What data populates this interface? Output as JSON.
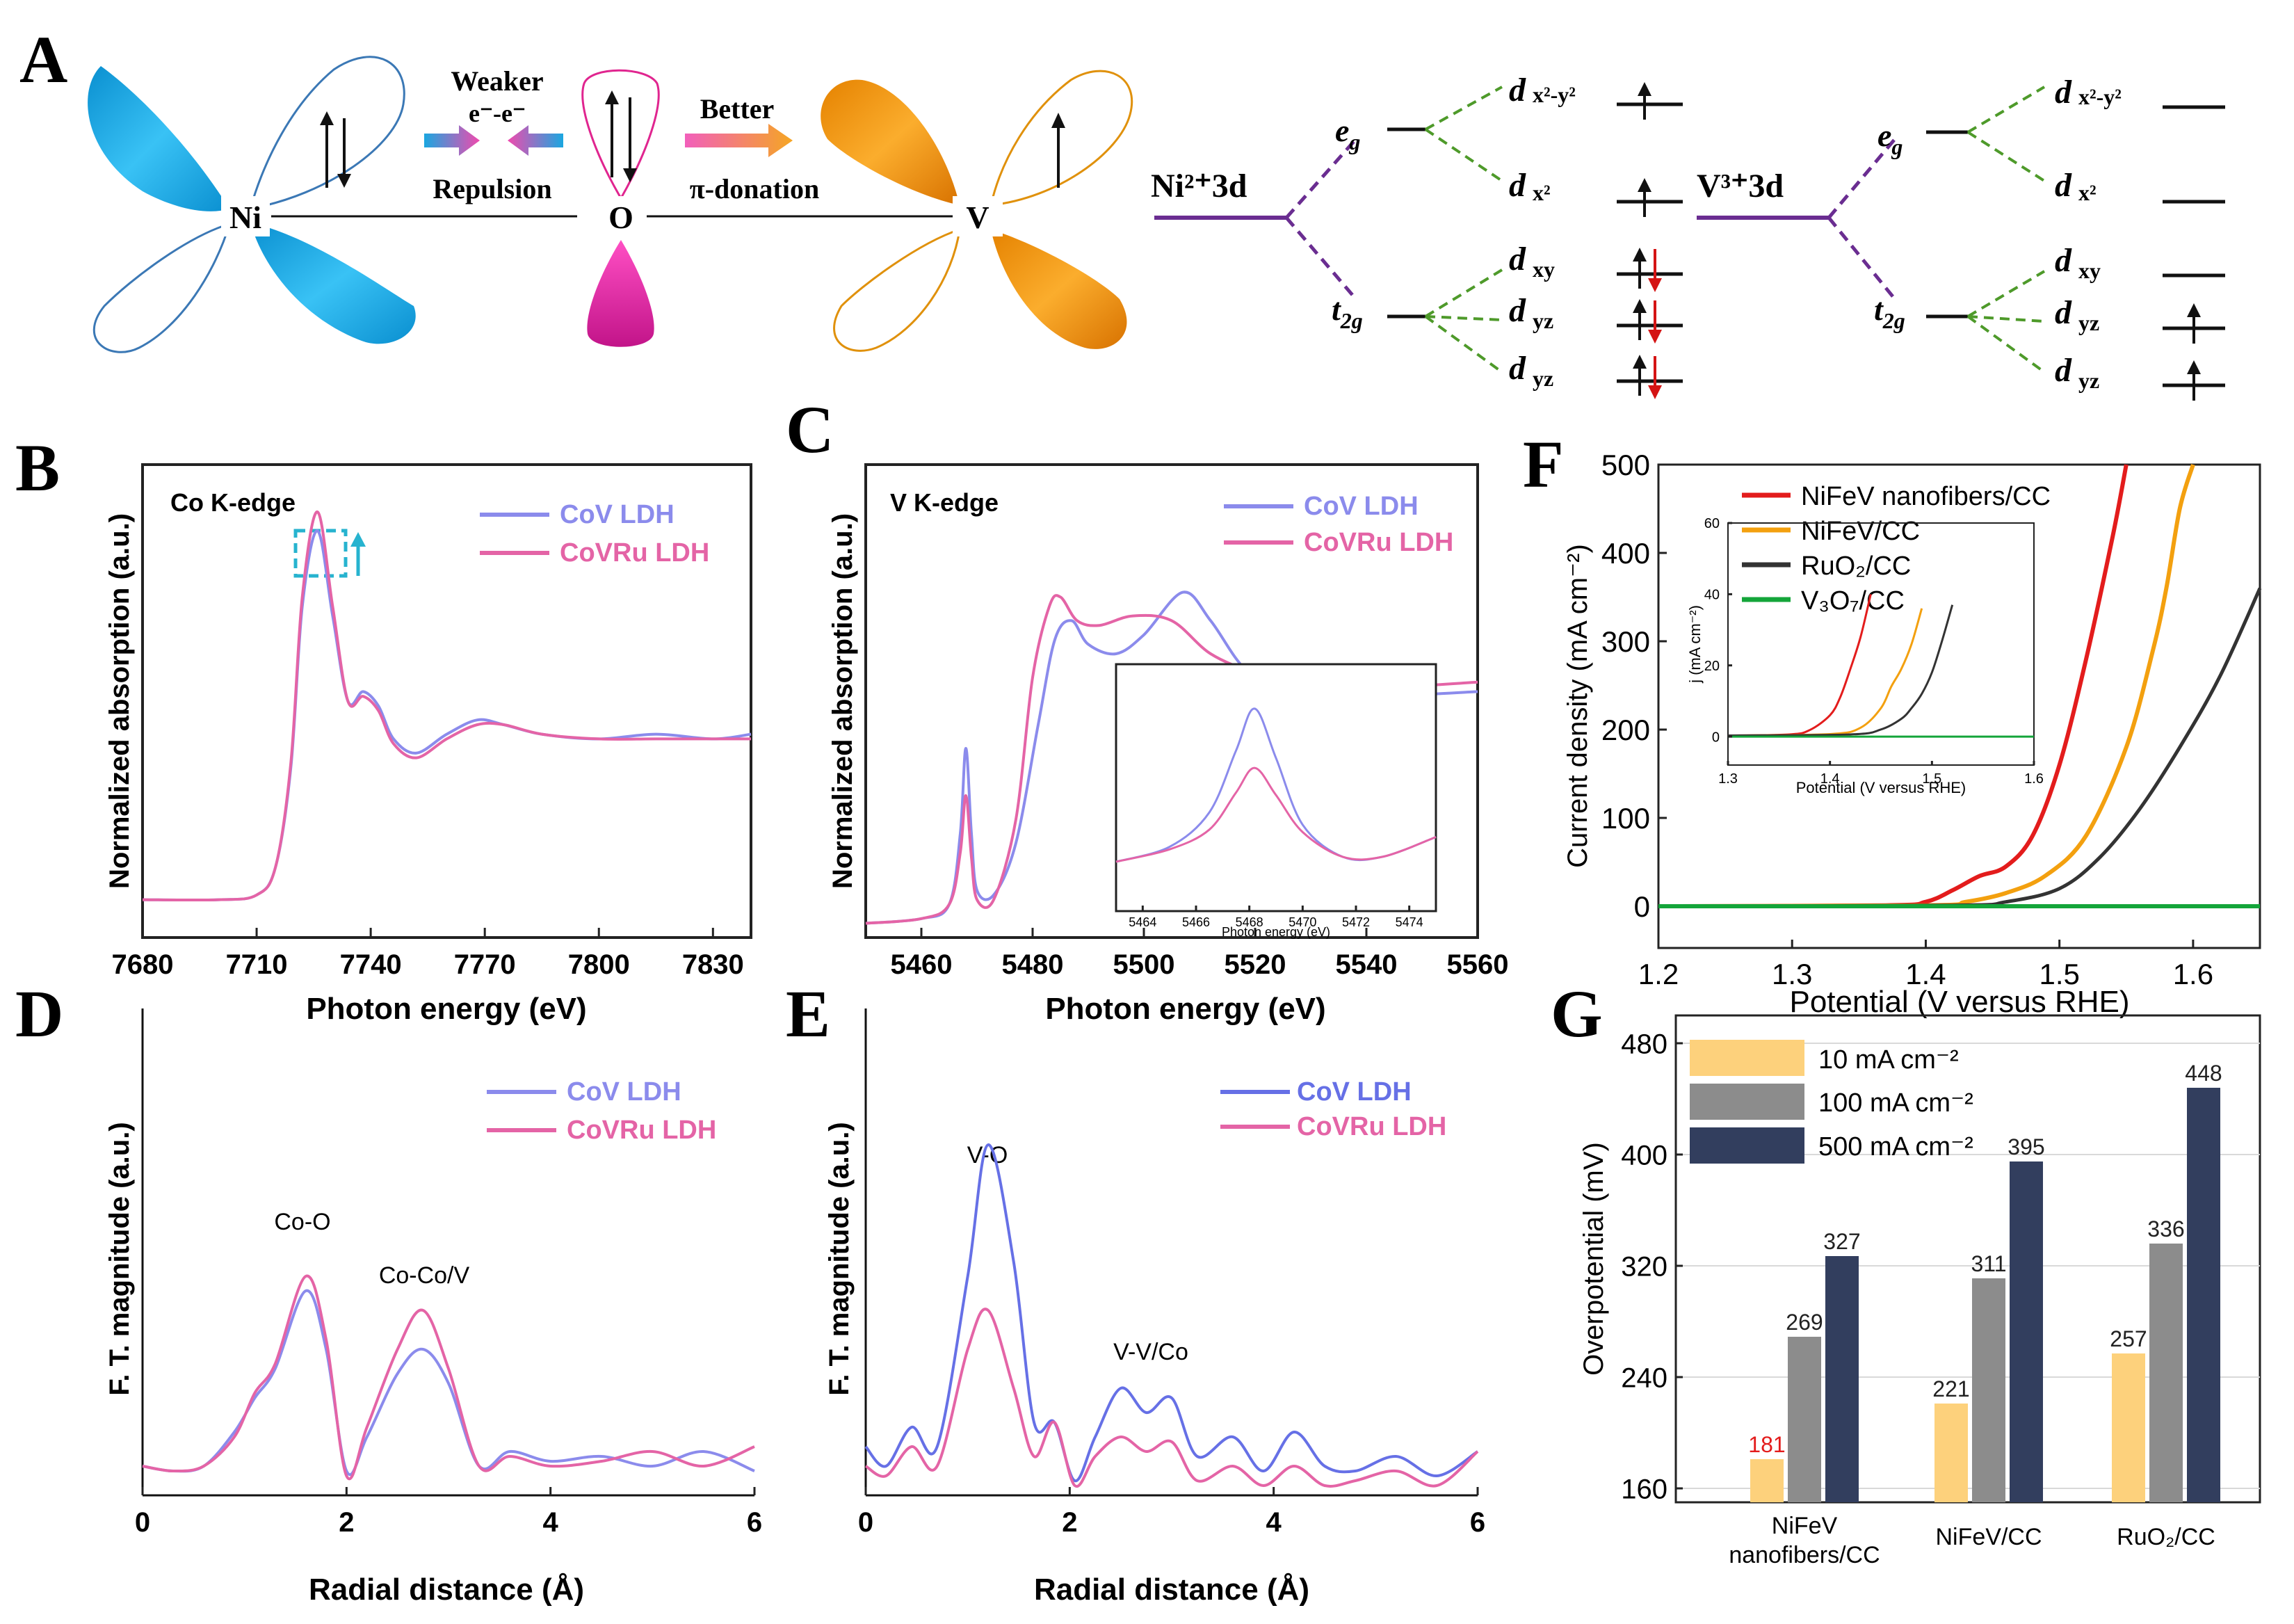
{
  "colors": {
    "ni": "#1aa7e0",
    "o": "#ee2fb0",
    "v": "#f59a0c",
    "purple": "#6a2d91",
    "dash_green": "#4e9a2a",
    "cov": "#8b8bec",
    "covru": "#e464a6",
    "red": "#e31c1c",
    "orange": "#f3a00f",
    "black": "#333333",
    "green": "#14a53a",
    "bar10": "#fdd17c",
    "bar100": "#8c8c8c",
    "bar500": "#323e5e"
  },
  "panel_a": {
    "label": "A",
    "ni": "Ni",
    "o": "O",
    "v": "V",
    "weaker": "Weaker",
    "ee": "e⁻-e⁻",
    "repulsion": "Repulsion",
    "better": "Better",
    "pi_donation": "π-donation",
    "ni_3d": "Ni²⁺3d",
    "v_3d": "V³⁺3d",
    "eg": "e",
    "eg_sub": "g",
    "t2g": "t",
    "t2g_sub": "2g",
    "d": "d",
    "orb_x2y2": "x²-y²",
    "orb_x2": "x²",
    "orb_xy": "xy",
    "orb_yz1": "yz",
    "orb_yz2": "yz"
  },
  "panel_labels": [
    "B",
    "C",
    "D",
    "E",
    "F",
    "G"
  ],
  "chart_data": [
    {
      "panel": "B",
      "type": "line",
      "title": "Co K-edge",
      "xlabel": "Photon energy (eV)",
      "ylabel": "Normalized absorption (a.u.)",
      "xlim": [
        7680,
        7840
      ],
      "xticks": [
        7680,
        7710,
        7740,
        7770,
        7800,
        7830
      ],
      "legend": [
        "CoV LDH",
        "CoVRu LDH"
      ],
      "series": [
        {
          "name": "CoV LDH",
          "x": [
            7680,
            7700,
            7710,
            7715,
            7719,
            7722,
            7726,
            7730,
            7734,
            7738,
            7742,
            7746,
            7752,
            7760,
            7768,
            7775,
            7785,
            7800,
            7815,
            7830,
            7840
          ],
          "y": [
            0.08,
            0.08,
            0.09,
            0.15,
            0.36,
            0.7,
            0.86,
            0.68,
            0.5,
            0.52,
            0.49,
            0.42,
            0.39,
            0.43,
            0.46,
            0.45,
            0.43,
            0.42,
            0.43,
            0.42,
            0.43
          ]
        },
        {
          "name": "CoVRu LDH",
          "x": [
            7680,
            7700,
            7710,
            7715,
            7719,
            7722,
            7726,
            7730,
            7734,
            7738,
            7742,
            7746,
            7752,
            7760,
            7768,
            7775,
            7785,
            7800,
            7815,
            7830,
            7840
          ],
          "y": [
            0.08,
            0.08,
            0.09,
            0.15,
            0.37,
            0.72,
            0.9,
            0.7,
            0.5,
            0.51,
            0.48,
            0.41,
            0.38,
            0.42,
            0.45,
            0.45,
            0.43,
            0.42,
            0.42,
            0.42,
            0.42
          ]
        }
      ]
    },
    {
      "panel": "C",
      "type": "line",
      "title": "V K-edge",
      "xlabel": "Photon energy (eV)",
      "ylabel": "Normalized absorption (a.u.)",
      "xlim": [
        5450,
        5560
      ],
      "xticks": [
        5460,
        5480,
        5500,
        5520,
        5540,
        5560
      ],
      "legend": [
        "CoV LDH",
        "CoVRu LDH"
      ],
      "series": [
        {
          "name": "CoV LDH",
          "x": [
            5450,
            5460,
            5465,
            5467,
            5468,
            5469,
            5470,
            5473,
            5477,
            5481,
            5484,
            5487,
            5490,
            5495,
            5500,
            5507,
            5512,
            5518,
            5525,
            5535,
            5545,
            5560
          ],
          "y": [
            0.03,
            0.04,
            0.07,
            0.22,
            0.4,
            0.22,
            0.1,
            0.09,
            0.2,
            0.45,
            0.63,
            0.67,
            0.62,
            0.6,
            0.64,
            0.73,
            0.67,
            0.57,
            0.52,
            0.5,
            0.51,
            0.52
          ]
        },
        {
          "name": "CoVRu LDH",
          "x": [
            5450,
            5460,
            5465,
            5467,
            5468,
            5469,
            5470,
            5473,
            5477,
            5480,
            5483,
            5485,
            5488,
            5492,
            5498,
            5505,
            5512,
            5520,
            5530,
            5545,
            5560
          ],
          "y": [
            0.03,
            0.04,
            0.07,
            0.18,
            0.3,
            0.17,
            0.08,
            0.08,
            0.25,
            0.55,
            0.7,
            0.72,
            0.67,
            0.66,
            0.68,
            0.67,
            0.6,
            0.56,
            0.53,
            0.53,
            0.54
          ]
        }
      ],
      "inset": {
        "xlabel": "Photon energy (eV)",
        "xlim": [
          5463,
          5475
        ],
        "xticks": [
          5464,
          5466,
          5468,
          5470,
          5472,
          5474
        ],
        "series": [
          {
            "name": "CoV LDH",
            "x": [
              5463,
              5465,
              5466.5,
              5467.5,
              5468.2,
              5469,
              5470,
              5471.5,
              5473,
              5475
            ],
            "y": [
              0.2,
              0.26,
              0.4,
              0.65,
              0.82,
              0.62,
              0.35,
              0.22,
              0.22,
              0.3
            ]
          },
          {
            "name": "CoVRu LDH",
            "x": [
              5463,
              5465,
              5466.5,
              5467.5,
              5468.2,
              5469,
              5470,
              5471.5,
              5473,
              5475
            ],
            "y": [
              0.2,
              0.25,
              0.33,
              0.48,
              0.58,
              0.47,
              0.32,
              0.22,
              0.22,
              0.3
            ]
          }
        ]
      }
    },
    {
      "panel": "D",
      "type": "line",
      "xlabel": "Radial distance (Å)",
      "ylabel": "F. T. magnitude (a.u.)",
      "xlim": [
        0,
        6
      ],
      "xticks": [
        0,
        2,
        4,
        6
      ],
      "legend": [
        "CoV LDH",
        "CoVRu LDH"
      ],
      "annotations": [
        "Co-O",
        "Co-Co/V"
      ],
      "series": [
        {
          "name": "CoV LDH",
          "x": [
            0,
            0.3,
            0.6,
            0.9,
            1.1,
            1.3,
            1.6,
            1.8,
            2.0,
            2.2,
            2.5,
            2.75,
            3.0,
            3.3,
            3.6,
            4.0,
            4.5,
            5.0,
            5.5,
            6.0
          ],
          "y": [
            0.06,
            0.05,
            0.06,
            0.13,
            0.2,
            0.26,
            0.42,
            0.3,
            0.05,
            0.12,
            0.25,
            0.3,
            0.23,
            0.06,
            0.09,
            0.07,
            0.08,
            0.06,
            0.09,
            0.05
          ]
        },
        {
          "name": "CoVRu LDH",
          "x": [
            0,
            0.3,
            0.6,
            0.9,
            1.1,
            1.3,
            1.6,
            1.8,
            2.0,
            2.2,
            2.5,
            2.75,
            3.0,
            3.3,
            3.6,
            4.0,
            4.5,
            5.0,
            5.5,
            6.0
          ],
          "y": [
            0.06,
            0.05,
            0.06,
            0.12,
            0.21,
            0.27,
            0.45,
            0.32,
            0.04,
            0.14,
            0.3,
            0.38,
            0.26,
            0.06,
            0.08,
            0.06,
            0.07,
            0.09,
            0.06,
            0.1
          ]
        }
      ]
    },
    {
      "panel": "E",
      "type": "line",
      "xlabel": "Radial distance (Å)",
      "ylabel": "F. T. magnitude (a.u.)",
      "xlim": [
        0,
        6
      ],
      "xticks": [
        0,
        2,
        4,
        6
      ],
      "legend": [
        "CoV LDH",
        "CoVRu LDH"
      ],
      "annotations": [
        "V-O",
        "V-V/Co"
      ],
      "series": [
        {
          "name": "CoV LDH",
          "x": [
            0,
            0.2,
            0.45,
            0.7,
            1.0,
            1.2,
            1.45,
            1.65,
            1.85,
            2.05,
            2.25,
            2.5,
            2.75,
            3.0,
            3.25,
            3.6,
            3.9,
            4.2,
            4.5,
            4.8,
            5.2,
            5.6,
            6.0
          ],
          "y": [
            0.1,
            0.06,
            0.14,
            0.1,
            0.45,
            0.72,
            0.48,
            0.15,
            0.15,
            0.03,
            0.12,
            0.22,
            0.17,
            0.2,
            0.08,
            0.12,
            0.05,
            0.13,
            0.06,
            0.05,
            0.08,
            0.04,
            0.09
          ]
        },
        {
          "name": "CoVRu LDH",
          "x": [
            0,
            0.2,
            0.45,
            0.7,
            1.0,
            1.2,
            1.45,
            1.65,
            1.85,
            2.05,
            2.25,
            2.5,
            2.75,
            3.0,
            3.25,
            3.6,
            3.9,
            4.2,
            4.5,
            4.8,
            5.2,
            5.6,
            6.0
          ],
          "y": [
            0.06,
            0.04,
            0.1,
            0.06,
            0.3,
            0.38,
            0.22,
            0.08,
            0.15,
            0.02,
            0.08,
            0.12,
            0.09,
            0.11,
            0.03,
            0.06,
            0.02,
            0.06,
            0.02,
            0.03,
            0.05,
            0.02,
            0.09
          ]
        }
      ]
    },
    {
      "panel": "F",
      "type": "line",
      "xlabel": "Potential (V versus RHE)",
      "ylabel": "Current density (mA cm⁻²)",
      "xlim": [
        1.2,
        1.65
      ],
      "ylim": [
        0,
        500
      ],
      "xticks": [
        1.2,
        1.3,
        1.4,
        1.5,
        1.6
      ],
      "yticks": [
        0,
        100,
        200,
        300,
        400,
        500
      ],
      "legend": [
        "NiFeV nanofibers/CC",
        "NiFeV/CC",
        "RuO₂/CC",
        "V₃O₇/CC"
      ],
      "series": [
        {
          "name": "NiFeV nanofibers/CC",
          "x": [
            1.2,
            1.37,
            1.4,
            1.42,
            1.44,
            1.46,
            1.48,
            1.5,
            1.52,
            1.54,
            1.55
          ],
          "y": [
            0,
            1,
            5,
            18,
            34,
            45,
            80,
            160,
            280,
            420,
            500
          ]
        },
        {
          "name": "NiFeV/CC",
          "x": [
            1.2,
            1.4,
            1.43,
            1.46,
            1.49,
            1.52,
            1.55,
            1.57,
            1.58,
            1.59,
            1.6
          ],
          "y": [
            0,
            1,
            5,
            15,
            35,
            80,
            180,
            290,
            360,
            450,
            500
          ]
        },
        {
          "name": "RuO₂/CC",
          "x": [
            1.2,
            1.42,
            1.46,
            1.5,
            1.53,
            1.56,
            1.59,
            1.62,
            1.65
          ],
          "y": [
            0,
            1,
            5,
            20,
            55,
            110,
            180,
            260,
            360
          ]
        },
        {
          "name": "V₃O₇/CC",
          "x": [
            1.2,
            1.65
          ],
          "y": [
            0,
            0
          ]
        }
      ],
      "inset": {
        "xlabel": "Potential (V versus RHE)",
        "ylabel": "j (mA cm⁻²)",
        "xlim": [
          1.3,
          1.6
        ],
        "ylim": [
          0,
          60
        ],
        "xticks": [
          1.3,
          1.4,
          1.5,
          1.6
        ],
        "yticks": [
          0,
          20,
          40,
          60
        ],
        "series": [
          {
            "name": "NiFeV nanofibers/CC",
            "x": [
              1.3,
              1.36,
              1.38,
              1.4,
              1.41,
              1.42,
              1.43,
              1.44
            ],
            "y": [
              0.3,
              0.6,
              1.8,
              6,
              11,
              19,
              28,
              40
            ]
          },
          {
            "name": "NiFeV/CC",
            "x": [
              1.3,
              1.4,
              1.43,
              1.45,
              1.46,
              1.47,
              1.48,
              1.49
            ],
            "y": [
              0.3,
              0.7,
              2.5,
              8,
              14,
              19,
              26,
              36
            ]
          },
          {
            "name": "RuO₂/CC",
            "x": [
              1.3,
              1.42,
              1.45,
              1.47,
              1.48,
              1.49,
              1.5,
              1.51,
              1.52
            ],
            "y": [
              0.3,
              0.6,
              2,
              5,
              8,
              12,
              18,
              27,
              37
            ]
          },
          {
            "name": "V₃O₇/CC",
            "x": [
              1.3,
              1.6
            ],
            "y": [
              0,
              0
            ]
          }
        ]
      }
    },
    {
      "panel": "G",
      "type": "bar",
      "ylabel": "Overpotential (mV)",
      "ylim": [
        150,
        500
      ],
      "yticks": [
        160,
        240,
        320,
        400,
        480
      ],
      "categories": [
        "NiFeV\nnanofibers/CC",
        "NiFeV/CC",
        "RuO₂/CC"
      ],
      "legend": [
        "10 mA cm⁻²",
        "100 mA cm⁻²",
        "500 mA cm⁻²"
      ],
      "series": [
        {
          "name": "10 mA cm⁻²",
          "values": [
            181,
            221,
            257
          ]
        },
        {
          "name": "100 mA cm⁻²",
          "values": [
            269,
            311,
            336
          ]
        },
        {
          "name": "500 mA cm⁻²",
          "values": [
            327,
            395,
            448
          ]
        }
      ]
    }
  ]
}
